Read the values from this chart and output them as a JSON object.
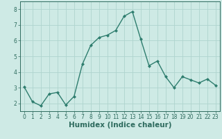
{
  "title": "",
  "xlabel": "Humidex (Indice chaleur)",
  "ylabel": "",
  "x": [
    0,
    1,
    2,
    3,
    4,
    5,
    6,
    7,
    8,
    9,
    10,
    11,
    12,
    13,
    14,
    15,
    16,
    17,
    18,
    19,
    20,
    21,
    22,
    23
  ],
  "y": [
    3.05,
    2.1,
    1.85,
    2.6,
    2.7,
    1.9,
    2.45,
    4.5,
    5.7,
    6.2,
    6.35,
    6.65,
    7.55,
    7.85,
    6.1,
    4.4,
    4.7,
    3.7,
    3.0,
    3.7,
    3.5,
    3.3,
    3.55,
    3.15
  ],
  "line_color": "#2e7d6e",
  "marker": "D",
  "marker_size": 2.0,
  "bg_color": "#ceeae5",
  "grid_color": "#aed4ce",
  "tick_label_color": "#2e6b5e",
  "xlabel_color": "#2e6b5e",
  "ylim": [
    1.5,
    8.5
  ],
  "xlim": [
    -0.5,
    23.5
  ],
  "yticks": [
    2,
    3,
    4,
    5,
    6,
    7,
    8
  ],
  "xticks": [
    0,
    1,
    2,
    3,
    4,
    5,
    6,
    7,
    8,
    9,
    10,
    11,
    12,
    13,
    14,
    15,
    16,
    17,
    18,
    19,
    20,
    21,
    22,
    23
  ],
  "tick_fontsize": 5.5,
  "xlabel_fontsize": 7.5,
  "linewidth": 1.0
}
